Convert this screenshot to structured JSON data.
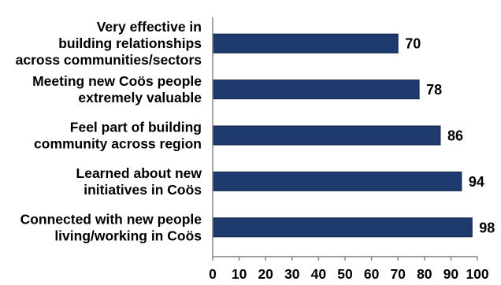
{
  "chart_data": {
    "type": "bar",
    "orientation": "horizontal",
    "title": "",
    "xlabel": "",
    "ylabel": "",
    "xlim": [
      0,
      100
    ],
    "x_ticks": [
      "0",
      "10",
      "20",
      "30",
      "40",
      "50",
      "60",
      "70",
      "80",
      "90",
      "100"
    ],
    "bar_color": "#1f3a6e",
    "grid": false,
    "categories": [
      [
        "Very effective in",
        "building relationships",
        "across communities/sectors"
      ],
      [
        "Meeting new Coös people",
        "extremely valuable"
      ],
      [
        "Feel part of building",
        "community across region"
      ],
      [
        "Learned about new",
        "initiatives in Coös"
      ],
      [
        "Connected with new people",
        "living/working in Coös"
      ]
    ],
    "values": [
      70,
      78,
      86,
      94,
      98
    ],
    "value_labels": [
      "70",
      "78",
      "86",
      "94",
      "98"
    ]
  }
}
